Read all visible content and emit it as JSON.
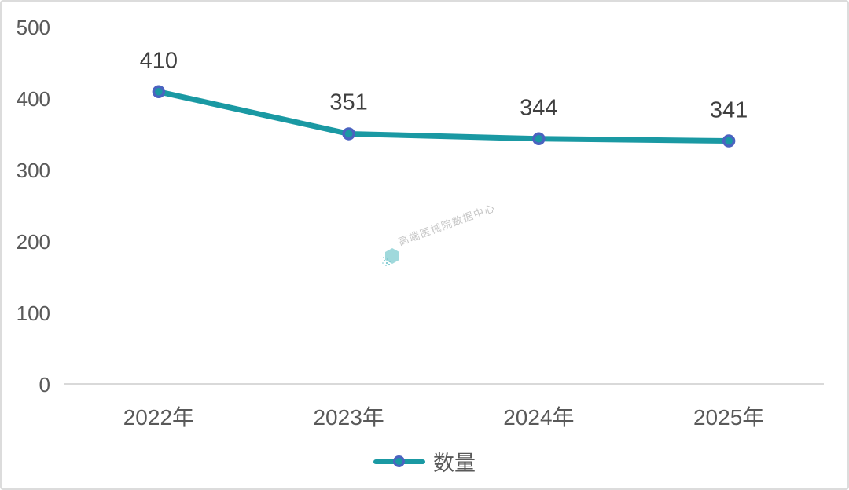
{
  "chart_data": {
    "type": "line",
    "categories": [
      "2022年",
      "2023年",
      "2024年",
      "2025年"
    ],
    "series": [
      {
        "name": "数量",
        "values": [
          410,
          351,
          344,
          341
        ]
      }
    ],
    "data_labels": [
      "410",
      "351",
      "344",
      "341"
    ],
    "title": "",
    "xlabel": "",
    "ylabel": "",
    "ylim": [
      0,
      500
    ],
    "yticks": [
      0,
      100,
      200,
      300,
      400,
      500
    ],
    "grid": false,
    "legend_position": "bottom",
    "colors": {
      "line": "#1a99a3",
      "marker_fill": "#1a99a3",
      "marker_border": "#4a63c0",
      "axis_line": "#d9d9d9",
      "tick_label": "#595959",
      "data_label": "#3f3f3f"
    }
  },
  "legend": {
    "label": "数量"
  },
  "watermark": {
    "text": "高端医械院数据中心",
    "logo": "teal-dot-hexagon"
  }
}
